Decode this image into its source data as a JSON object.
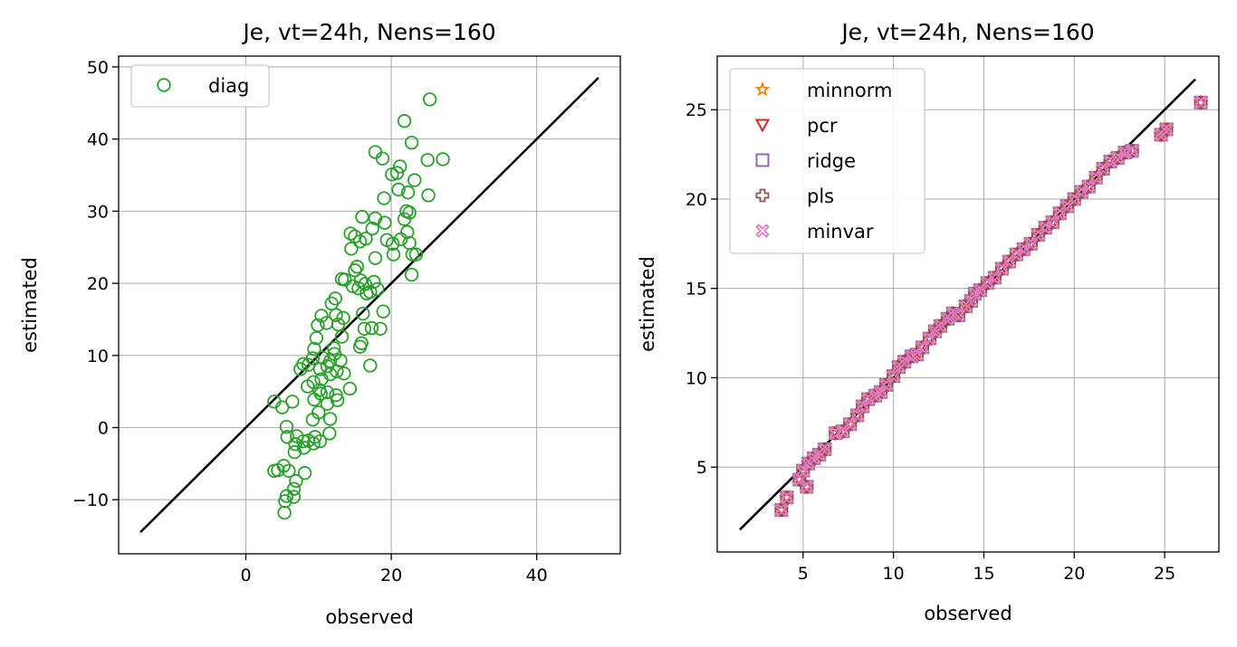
{
  "chart_data": [
    {
      "type": "scatter",
      "title": "Je, vt=24h, Nens=160",
      "xlabel": "observed",
      "ylabel": "estimated",
      "xlim": [
        -17.5,
        51.5
      ],
      "ylim": [
        -17.5,
        51.5
      ],
      "xticks": [
        0,
        20,
        40
      ],
      "xtick_labels": [
        "0",
        "20",
        "40"
      ],
      "yticks": [
        -10,
        0,
        10,
        20,
        30,
        40,
        50
      ],
      "ytick_labels": [
        "−10",
        "0",
        "10",
        "20",
        "30",
        "40",
        "50"
      ],
      "grid": true,
      "legend_position": "top-left",
      "reference_line": {
        "from": [
          -14.5,
          -14.5
        ],
        "to": [
          48.5,
          48.5
        ],
        "color": "#000000"
      },
      "series": [
        {
          "name": "diag",
          "marker": "circle",
          "color": "#2ca02c",
          "points": [
            [
              25.3,
              45.5
            ],
            [
              21.8,
              42.5
            ],
            [
              22.8,
              39.5
            ],
            [
              17.8,
              38.2
            ],
            [
              18.8,
              37.3
            ],
            [
              27.1,
              37.2
            ],
            [
              25.0,
              37.1
            ],
            [
              21.2,
              36.2
            ],
            [
              20.8,
              35.3
            ],
            [
              20.1,
              35.1
            ],
            [
              23.2,
              34.3
            ],
            [
              21.0,
              33.0
            ],
            [
              22.3,
              32.6
            ],
            [
              25.1,
              32.2
            ],
            [
              19.0,
              31.8
            ],
            [
              22.1,
              30.0
            ],
            [
              22.5,
              29.8
            ],
            [
              16.0,
              29.2
            ],
            [
              17.8,
              29.0
            ],
            [
              19.1,
              28.4
            ],
            [
              21.8,
              28.9
            ],
            [
              17.4,
              27.6
            ],
            [
              22.2,
              27.1
            ],
            [
              14.4,
              26.9
            ],
            [
              15.0,
              26.5
            ],
            [
              21.3,
              26.1
            ],
            [
              16.5,
              26.2
            ],
            [
              19.4,
              26.0
            ],
            [
              22.5,
              25.6
            ],
            [
              15.7,
              25.8
            ],
            [
              20.2,
              25.5
            ],
            [
              14.5,
              24.8
            ],
            [
              23.4,
              24.0
            ],
            [
              20.3,
              24.0
            ],
            [
              22.9,
              24.0
            ],
            [
              17.8,
              23.5
            ],
            [
              15.3,
              22.3
            ],
            [
              15.0,
              21.8
            ],
            [
              22.8,
              21.2
            ],
            [
              15.8,
              20.4
            ],
            [
              17.6,
              20.2
            ],
            [
              13.2,
              20.6
            ],
            [
              13.6,
              20.5
            ],
            [
              16.4,
              19.9
            ],
            [
              18.1,
              19.2
            ],
            [
              14.7,
              19.6
            ],
            [
              15.5,
              19.3
            ],
            [
              17.1,
              18.8
            ],
            [
              16.6,
              18.6
            ],
            [
              12.3,
              17.9
            ],
            [
              11.8,
              17.2
            ],
            [
              10.4,
              15.5
            ],
            [
              12.4,
              15.6
            ],
            [
              13.4,
              15.2
            ],
            [
              16.1,
              15.8
            ],
            [
              18.9,
              16.1
            ],
            [
              11.1,
              14.5
            ],
            [
              9.9,
              14.2
            ],
            [
              12.7,
              14.3
            ],
            [
              16.3,
              13.7
            ],
            [
              17.3,
              13.8
            ],
            [
              18.5,
              13.7
            ],
            [
              9.7,
              12.4
            ],
            [
              13.2,
              12.6
            ],
            [
              15.9,
              11.7
            ],
            [
              12.1,
              11.0
            ],
            [
              15.7,
              11.2
            ],
            [
              9.4,
              10.9
            ],
            [
              12.2,
              10.2
            ],
            [
              10.5,
              9.7
            ],
            [
              13.0,
              9.3
            ],
            [
              9.2,
              9.6
            ],
            [
              11.6,
              9.2
            ],
            [
              17.1,
              8.6
            ],
            [
              7.9,
              8.8
            ],
            [
              8.6,
              8.7
            ],
            [
              11.2,
              8.5
            ],
            [
              10.2,
              8.1
            ],
            [
              7.5,
              8.1
            ],
            [
              12.5,
              7.8
            ],
            [
              11.6,
              7.4
            ],
            [
              13.5,
              7.5
            ],
            [
              10.4,
              6.7
            ],
            [
              9.3,
              6.3
            ],
            [
              8.5,
              5.7
            ],
            [
              14.3,
              5.4
            ],
            [
              10.1,
              5.2
            ],
            [
              11.2,
              4.9
            ],
            [
              12.4,
              4.5
            ],
            [
              10.3,
              4.7
            ],
            [
              9.4,
              3.9
            ],
            [
              12.6,
              3.8
            ],
            [
              6.4,
              3.6
            ],
            [
              11.2,
              3.3
            ],
            [
              3.9,
              3.6
            ],
            [
              5.0,
              2.8
            ],
            [
              10.0,
              2.1
            ],
            [
              9.2,
              1.1
            ],
            [
              11.6,
              1.2
            ],
            [
              5.6,
              0.1
            ],
            [
              11.5,
              -0.8
            ],
            [
              7.0,
              -1.2
            ],
            [
              5.7,
              -1.3
            ],
            [
              9.5,
              -1.3
            ],
            [
              10.2,
              -1.9
            ],
            [
              8.6,
              -1.8
            ],
            [
              7.9,
              -1.9
            ],
            [
              9.3,
              -2.2
            ],
            [
              6.8,
              -2.3
            ],
            [
              8.0,
              -2.8
            ],
            [
              6.7,
              -3.4
            ],
            [
              8.1,
              -6.3
            ],
            [
              5.2,
              -5.3
            ],
            [
              4.4,
              -5.9
            ],
            [
              3.9,
              -6.0
            ],
            [
              5.9,
              -6.0
            ],
            [
              6.9,
              -7.4
            ],
            [
              6.6,
              -8.5
            ],
            [
              5.6,
              -9.5
            ],
            [
              6.6,
              -9.6
            ],
            [
              5.4,
              -10.2
            ],
            [
              5.3,
              -11.8
            ]
          ]
        }
      ]
    },
    {
      "type": "scatter",
      "title": "Je, vt=24h, Nens=160",
      "xlabel": "observed",
      "ylabel": "estimated",
      "xlim": [
        0.25,
        28.0
      ],
      "ylim": [
        0.25,
        28.0
      ],
      "xticks": [
        5,
        10,
        15,
        20,
        25
      ],
      "xtick_labels": [
        "5",
        "10",
        "15",
        "20",
        "25"
      ],
      "yticks": [
        5,
        10,
        15,
        20,
        25
      ],
      "ytick_labels": [
        "5",
        "10",
        "15",
        "20",
        "25"
      ],
      "grid": true,
      "legend_position": "top-left",
      "reference_line": {
        "from": [
          1.5,
          1.5
        ],
        "to": [
          26.7,
          26.7
        ],
        "color": "#000000"
      },
      "observed": [
        3.8,
        4.1,
        4.8,
        5.0,
        5.2,
        5.3,
        5.6,
        5.9,
        6.2,
        6.8,
        7.2,
        7.6,
        8.0,
        8.3,
        8.6,
        9.0,
        9.3,
        9.6,
        10.0,
        10.3,
        10.6,
        11.0,
        11.3,
        11.6,
        12.0,
        12.3,
        12.6,
        13.0,
        13.3,
        13.6,
        14.0,
        14.3,
        14.5,
        14.8,
        15.2,
        15.6,
        16.0,
        16.4,
        16.8,
        17.2,
        17.6,
        18.0,
        18.4,
        18.8,
        19.2,
        19.6,
        20.0,
        20.4,
        20.8,
        21.2,
        21.6,
        22.0,
        22.4,
        22.8,
        23.2,
        24.8,
        25.1,
        27.0
      ],
      "estimated": [
        2.6,
        3.3,
        4.3,
        4.8,
        3.9,
        5.2,
        5.5,
        5.7,
        6.0,
        6.9,
        7.0,
        7.4,
        7.9,
        8.4,
        8.8,
        9.0,
        9.2,
        9.6,
        10.1,
        10.6,
        10.9,
        11.2,
        11.3,
        11.7,
        12.2,
        12.6,
        12.9,
        13.3,
        13.6,
        13.5,
        14.0,
        14.3,
        14.7,
        14.9,
        15.3,
        15.6,
        16.1,
        16.5,
        16.9,
        17.2,
        17.5,
        18.0,
        18.4,
        18.7,
        19.2,
        19.6,
        20.0,
        20.4,
        20.7,
        21.2,
        21.7,
        22.1,
        22.3,
        22.6,
        22.7,
        23.6,
        23.9,
        25.4
      ],
      "series": [
        {
          "name": "minnorm",
          "marker": "star",
          "color": "#ff7f0e"
        },
        {
          "name": "pcr",
          "marker": "triangle-down",
          "color": "#d62728"
        },
        {
          "name": "ridge",
          "marker": "square",
          "color": "#9467bd"
        },
        {
          "name": "pls",
          "marker": "plus",
          "color": "#8c564b"
        },
        {
          "name": "minvar",
          "marker": "x",
          "color": "#e377c2"
        }
      ]
    }
  ]
}
